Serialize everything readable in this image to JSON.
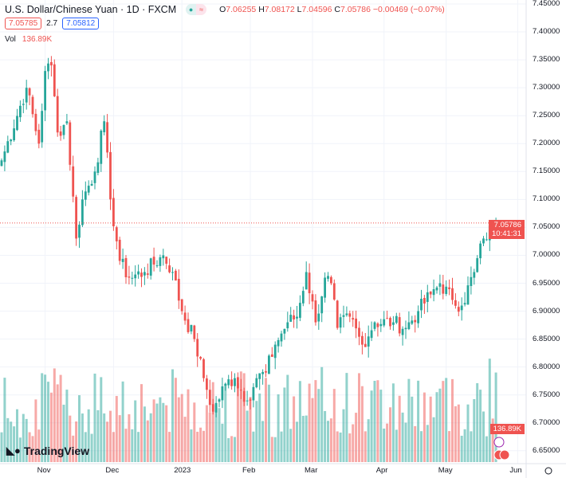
{
  "header": {
    "title": "U.S. Dollar/Chinese Yuan · 1D · FXCM",
    "open_label": "O",
    "open": "7.06255",
    "high_label": "H",
    "high": "7.08172",
    "low_label": "L",
    "low": "7.04596",
    "close_label": "C",
    "close": "7.05786",
    "change": "−0.00469 (−0.07%)",
    "bid": "7.05785",
    "spread": "2.7",
    "ask": "7.05812",
    "vol_label": "Vol",
    "vol_value": "136.89K"
  },
  "price_tag": {
    "price": "7.05786",
    "countdown": "10:41:31"
  },
  "vol_tag": "136.89K",
  "brand": "TradingView",
  "colors": {
    "up": "#26a69a",
    "down": "#ef5350",
    "grid": "#f0f3fa"
  },
  "chart_data": {
    "type": "candlestick",
    "title": "U.S. Dollar/Chinese Yuan · 1D · FXCM",
    "ylim": [
      6.63,
      7.45
    ],
    "y_ticks": [
      "7.45000",
      "7.40000",
      "7.35000",
      "7.30000",
      "7.25000",
      "7.20000",
      "7.15000",
      "7.10000",
      "7.05000",
      "7.00000",
      "6.95000",
      "6.90000",
      "6.85000",
      "6.80000",
      "6.75000",
      "6.70000",
      "6.65000"
    ],
    "x_ticks": [
      {
        "label": "Nov",
        "bar": 14
      },
      {
        "label": "Dec",
        "bar": 36
      },
      {
        "label": "2023",
        "bar": 58
      },
      {
        "label": "Feb",
        "bar": 80
      },
      {
        "label": "Mar",
        "bar": 100
      },
      {
        "label": "Apr",
        "bar": 123
      },
      {
        "label": "May",
        "bar": 143
      },
      {
        "label": "Jun",
        "bar": 166
      }
    ],
    "close_keypoints": [
      [
        0,
        7.17
      ],
      [
        8,
        7.3
      ],
      [
        12,
        7.2
      ],
      [
        14,
        7.33
      ],
      [
        16,
        7.34
      ],
      [
        18,
        7.22
      ],
      [
        21,
        7.24
      ],
      [
        24,
        7.03
      ],
      [
        26,
        7.1
      ],
      [
        30,
        7.15
      ],
      [
        33,
        7.24
      ],
      [
        35,
        7.1
      ],
      [
        38,
        6.99
      ],
      [
        41,
        6.96
      ],
      [
        46,
        6.97
      ],
      [
        52,
        7.0
      ],
      [
        55,
        6.97
      ],
      [
        58,
        6.9
      ],
      [
        62,
        6.85
      ],
      [
        65,
        6.78
      ],
      [
        68,
        6.72
      ],
      [
        72,
        6.77
      ],
      [
        75,
        6.78
      ],
      [
        79,
        6.74
      ],
      [
        82,
        6.78
      ],
      [
        85,
        6.79
      ],
      [
        88,
        6.84
      ],
      [
        92,
        6.88
      ],
      [
        95,
        6.89
      ],
      [
        98,
        6.97
      ],
      [
        101,
        6.88
      ],
      [
        104,
        6.96
      ],
      [
        106,
        6.95
      ],
      [
        108,
        6.87
      ],
      [
        112,
        6.89
      ],
      [
        116,
        6.84
      ],
      [
        120,
        6.88
      ],
      [
        126,
        6.88
      ],
      [
        130,
        6.87
      ],
      [
        134,
        6.9
      ],
      [
        138,
        6.93
      ],
      [
        141,
        6.95
      ],
      [
        145,
        6.92
      ],
      [
        148,
        6.91
      ],
      [
        152,
        6.97
      ],
      [
        155,
        7.03
      ],
      [
        158,
        7.05
      ],
      [
        159,
        7.05786
      ]
    ],
    "last_close": 7.05786
  }
}
